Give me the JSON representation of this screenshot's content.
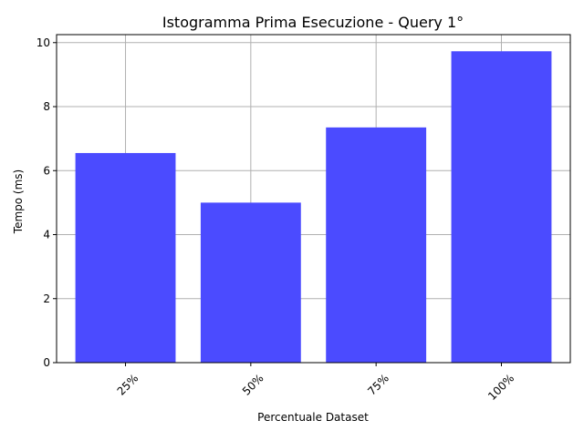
{
  "chart_data": {
    "type": "bar",
    "title": "Istogramma Prima Esecuzione - Query 1°",
    "xlabel": "Percentuale Dataset",
    "ylabel": "Tempo (ms)",
    "categories": [
      "25%",
      "50%",
      "75%",
      "100%"
    ],
    "values": [
      6.55,
      5.0,
      7.35,
      9.73
    ],
    "ylim": [
      0,
      10.25
    ],
    "yticks": [
      0,
      2,
      4,
      6,
      8,
      10
    ],
    "grid": true,
    "bar_color": "#4b4bff",
    "grid_color": "#b0b0b0",
    "x_tick_rotation_deg": 45
  }
}
